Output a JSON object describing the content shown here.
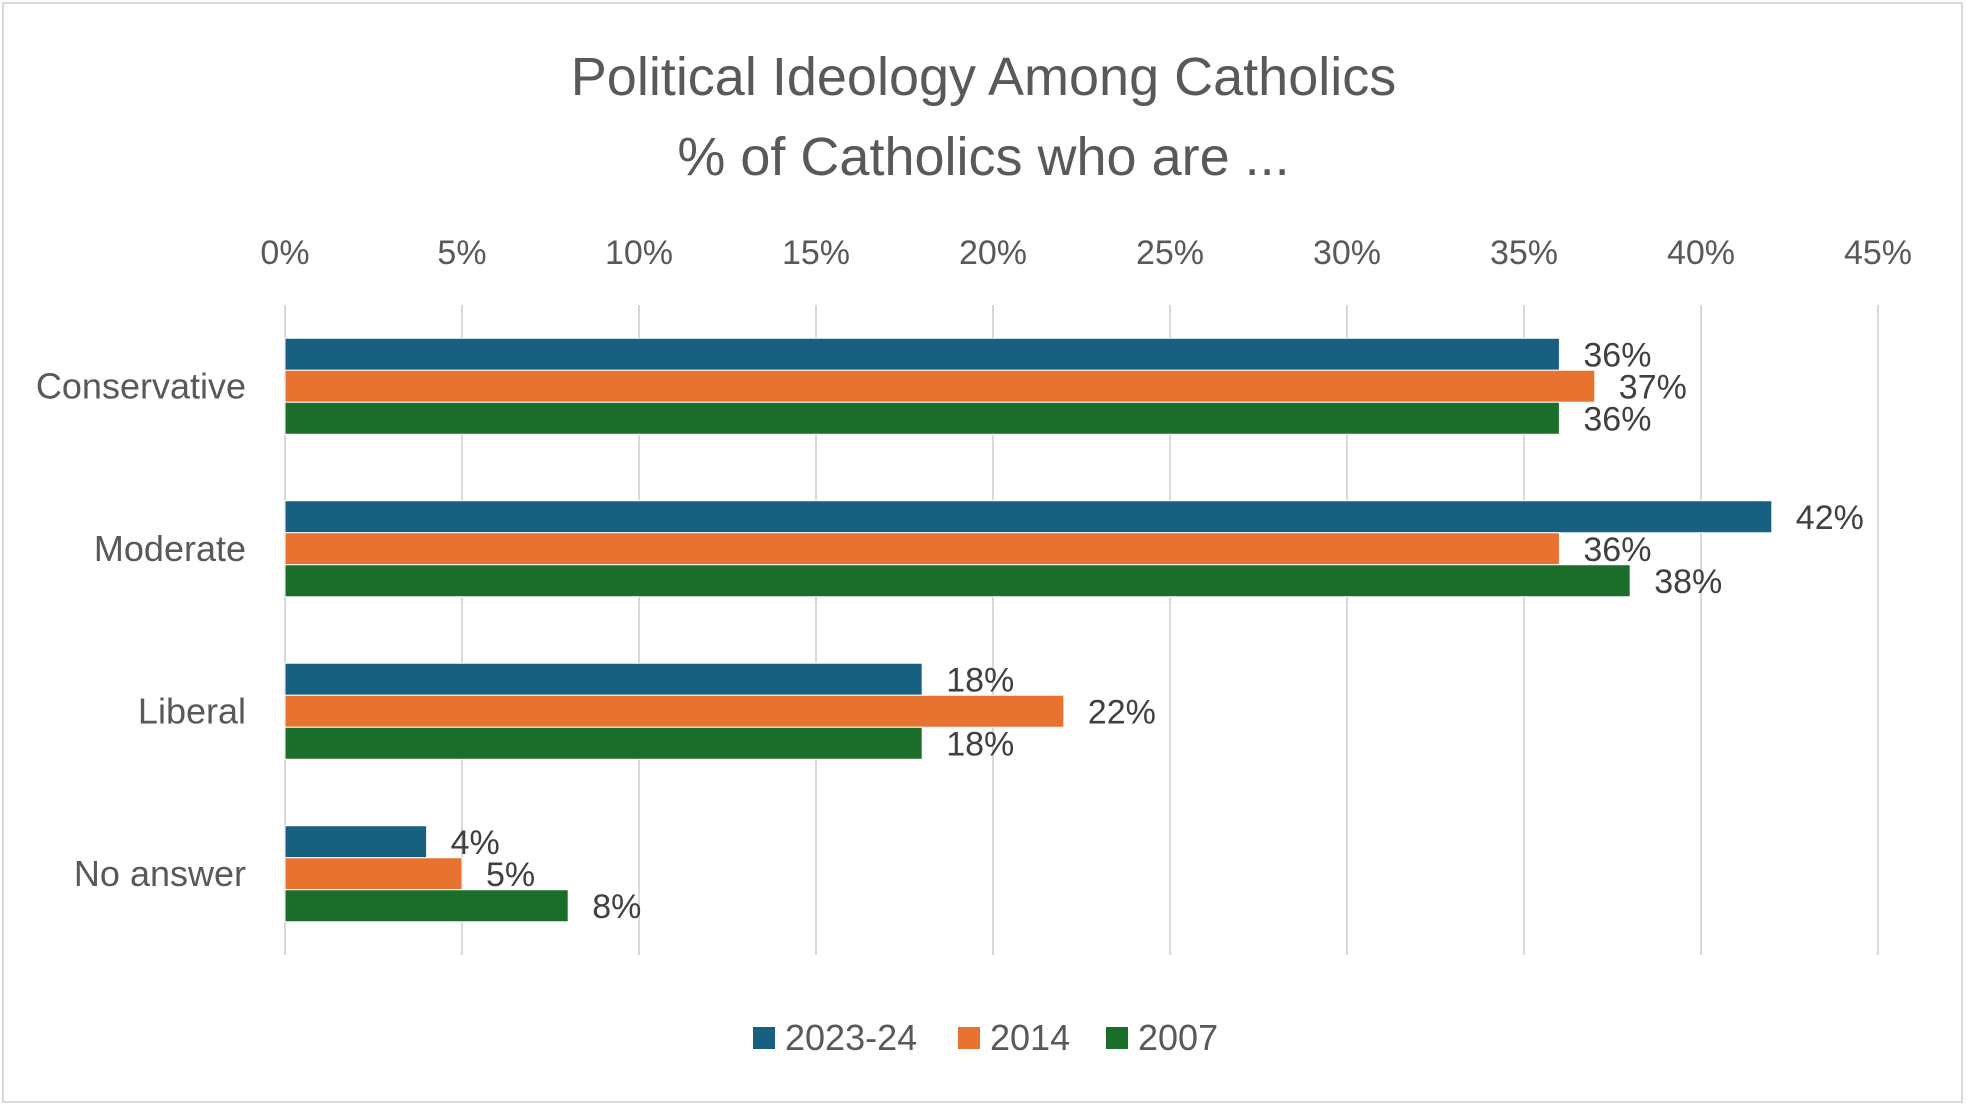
{
  "chart_data": {
    "type": "bar",
    "orientation": "horizontal",
    "title": "Political Ideology Among Catholics",
    "subtitle": "% of Catholics who are ...",
    "categories": [
      "Conservative",
      "Moderate",
      "Liberal",
      "No answer"
    ],
    "series": [
      {
        "name": "2023-24",
        "color": "#17607f",
        "values": [
          36,
          42,
          18,
          4
        ],
        "labels": [
          "36%",
          "42%",
          "18%",
          "4%"
        ]
      },
      {
        "name": "2014",
        "color": "#e87330",
        "values": [
          37,
          36,
          22,
          5
        ],
        "labels": [
          "37%",
          "36%",
          "22%",
          "5%"
        ]
      },
      {
        "name": "2007",
        "color": "#1a6e2a",
        "values": [
          36,
          38,
          18,
          8
        ],
        "labels": [
          "36%",
          "38%",
          "18%",
          "8%"
        ]
      }
    ],
    "xlim": [
      0,
      45
    ],
    "ticks": [
      0,
      5,
      10,
      15,
      20,
      25,
      30,
      35,
      40,
      45
    ],
    "tick_labels": [
      "0%",
      "5%",
      "10%",
      "15%",
      "20%",
      "25%",
      "30%",
      "35%",
      "40%",
      "45%"
    ],
    "axis_position": "top",
    "grid": true,
    "legend": "bottom",
    "gridline_color": "#d9d9d9"
  }
}
